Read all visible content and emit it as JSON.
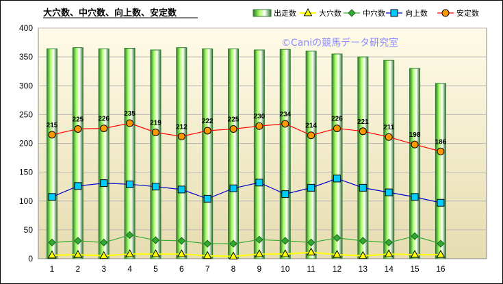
{
  "chart_data": {
    "type": "bar",
    "title": "大穴数、中穴数、向上数、安定数",
    "watermark": "©Caniの競馬データ研究室",
    "categories": [
      "1",
      "2",
      "3",
      "4",
      "5",
      "6",
      "7",
      "8",
      "9",
      "10",
      "11",
      "12",
      "13",
      "14",
      "15",
      "16"
    ],
    "ylim": [
      0,
      400
    ],
    "yticks": [
      "0",
      "50",
      "100",
      "150",
      "200",
      "250",
      "300",
      "350",
      "400"
    ],
    "grid": true,
    "legend_position": "top-right",
    "colors": {
      "bars": "#aaff66",
      "bar_edge": "#2f7a2f",
      "oana": "#ffff00",
      "chuana": "#33aa33",
      "kojo": "#0000cc",
      "antei": "#ff0000",
      "marker_kojo": "#00ccff",
      "marker_antei": "#ff9900"
    },
    "series": [
      {
        "name": "出走数",
        "kind": "bar",
        "values": [
          364,
          366,
          364,
          365,
          362,
          366,
          364,
          364,
          362,
          363,
          360,
          355,
          350,
          344,
          330,
          304
        ]
      },
      {
        "name": "大穴数",
        "kind": "line",
        "values": [
          6,
          7,
          5,
          8,
          8,
          8,
          5,
          4,
          8,
          8,
          11,
          7,
          5,
          8,
          7,
          7
        ]
      },
      {
        "name": "中穴数",
        "kind": "line",
        "values": [
          28,
          31,
          28,
          41,
          32,
          31,
          26,
          26,
          33,
          31,
          28,
          36,
          31,
          28,
          39,
          26
        ]
      },
      {
        "name": "向上数",
        "kind": "line",
        "values": [
          107,
          126,
          131,
          129,
          125,
          120,
          104,
          122,
          132,
          112,
          123,
          139,
          123,
          115,
          107,
          97
        ]
      },
      {
        "name": "安定数",
        "kind": "line",
        "values": [
          215,
          225,
          226,
          235,
          219,
          212,
          222,
          225,
          230,
          234,
          214,
          226,
          221,
          211,
          198,
          186
        ],
        "data_labels": [
          "215",
          "225",
          "226",
          "235",
          "219",
          "212",
          "222",
          "225",
          "230",
          "234",
          "214",
          "226",
          "221",
          "211",
          "198",
          "186"
        ]
      }
    ]
  }
}
